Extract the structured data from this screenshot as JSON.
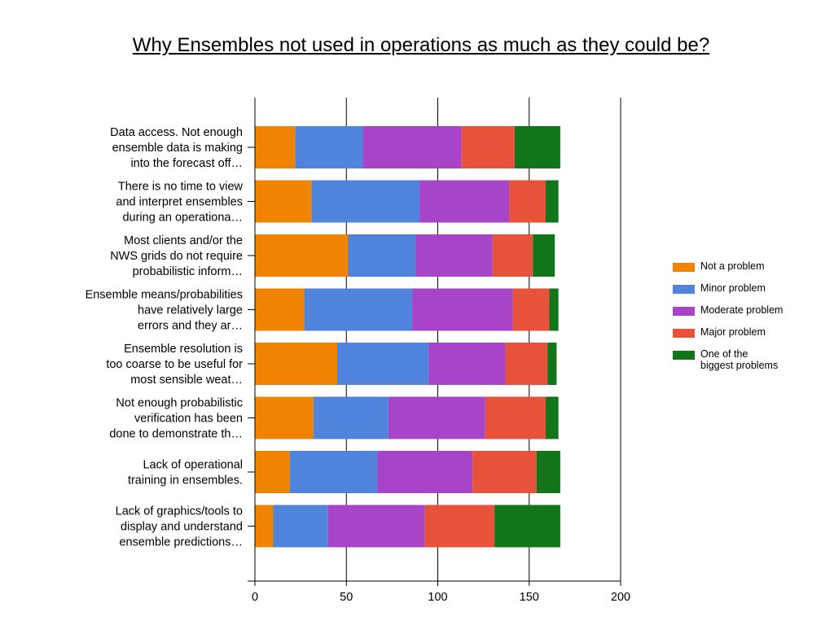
{
  "slide": {
    "title": "Why Ensembles not used in operations as much as they could be?"
  },
  "chart_data": {
    "type": "bar",
    "orientation": "horizontal",
    "stacked": true,
    "categories": [
      [
        "Data access. Not enough",
        "ensemble data is making",
        "into the forecast off…"
      ],
      [
        "There is no time to view",
        "and interpret ensembles",
        "during an operationa…"
      ],
      [
        "Most clients and/or the",
        "NWS grids do not require",
        "probabilistic inform…"
      ],
      [
        "Ensemble means/probabilities",
        "have relatively large",
        "errors and they ar…"
      ],
      [
        "Ensemble resolution is",
        "too coarse to be useful for",
        "most sensible weat…"
      ],
      [
        "Not enough probabilistic",
        "verification has been",
        "done to demonstrate th…"
      ],
      [
        "Lack of operational",
        "training in ensembles."
      ],
      [
        "Lack of graphics/tools to",
        "display and understand",
        "ensemble predictions…"
      ]
    ],
    "series": [
      {
        "name": "Not a problem",
        "color": "#F08400",
        "values": [
          22,
          31,
          51,
          27,
          45,
          32,
          19,
          10
        ]
      },
      {
        "name": "Minor problem",
        "color": "#5083DB",
        "values": [
          37,
          59,
          37,
          59,
          50,
          41,
          48,
          30
        ]
      },
      {
        "name": "Moderate problem",
        "color": "#A744C8",
        "values": [
          54,
          49,
          42,
          55,
          42,
          53,
          52,
          53
        ]
      },
      {
        "name": "Major problem",
        "color": "#E8513A",
        "values": [
          29,
          20,
          22,
          20,
          23,
          33,
          35,
          38
        ]
      },
      {
        "name": "One of the biggest problems",
        "color": "#12751A",
        "values": [
          25,
          7,
          12,
          5,
          5,
          7,
          13,
          36
        ]
      }
    ],
    "xlim": [
      0,
      200
    ],
    "xticks": [
      0,
      50,
      100,
      150,
      200
    ],
    "grid": true,
    "legend_position": "right",
    "legend_labels": [
      [
        "Not a problem"
      ],
      [
        "Minor problem"
      ],
      [
        "Moderate problem"
      ],
      [
        "Major problem"
      ],
      [
        "One of the",
        "biggest problems"
      ]
    ]
  }
}
